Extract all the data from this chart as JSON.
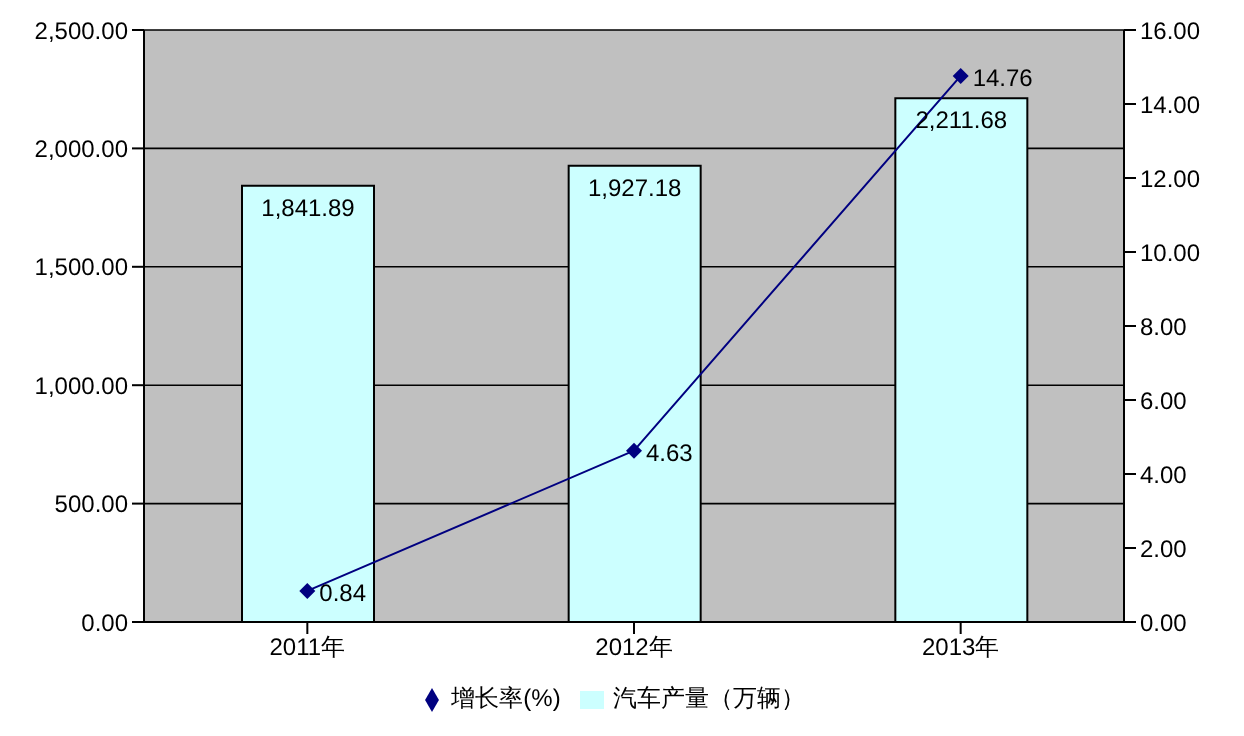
{
  "chart_data": {
    "type": "bar",
    "categories": [
      "2011年",
      "2012年",
      "2013年"
    ],
    "series": [
      {
        "name": "汽车产量（万辆）",
        "color": "#ccffff",
        "values": [
          1841.89,
          1927.18,
          2211.68
        ],
        "value_labels": [
          "1,841.89",
          "1,927.18",
          "2,211.68"
        ]
      },
      {
        "name": "增长率(%)",
        "type": "line",
        "axis": "y2",
        "color": "#000080",
        "marker": "diamond",
        "values": [
          0.84,
          4.63,
          14.76
        ],
        "value_labels": [
          "0.84",
          "4.63",
          "14.76"
        ]
      }
    ],
    "ylim": [
      0,
      2500
    ],
    "yticks": [
      {
        "value": 0,
        "label": "0.00"
      },
      {
        "value": 500,
        "label": "500.00"
      },
      {
        "value": 1000,
        "label": "1,000.00"
      },
      {
        "value": 1500,
        "label": "1,500.00"
      },
      {
        "value": 2000,
        "label": "2,000.00"
      },
      {
        "value": 2500,
        "label": "2,500.00"
      }
    ],
    "y2lim": [
      0,
      16
    ],
    "y2ticks": [
      {
        "value": 0,
        "label": "0.00"
      },
      {
        "value": 2,
        "label": "2.00"
      },
      {
        "value": 4,
        "label": "4.00"
      },
      {
        "value": 6,
        "label": "6.00"
      },
      {
        "value": 8,
        "label": "8.00"
      },
      {
        "value": 10,
        "label": "10.00"
      },
      {
        "value": 12,
        "label": "12.00"
      },
      {
        "value": 14,
        "label": "14.00"
      },
      {
        "value": 16,
        "label": "16.00"
      }
    ],
    "grid": "y",
    "legend": "bottom"
  }
}
